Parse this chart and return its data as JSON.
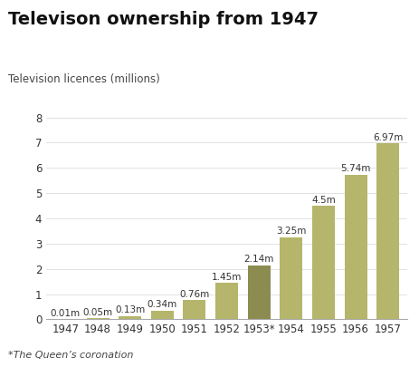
{
  "title": "Televison ownership from 1947",
  "ylabel": "Television licences (millions)",
  "footnote": "*The Queen’s coronation",
  "categories": [
    "1947",
    "1948",
    "1949",
    "1950",
    "1951",
    "1952",
    "1953*",
    "1954",
    "1955",
    "1956",
    "1957"
  ],
  "values": [
    0.01,
    0.05,
    0.13,
    0.34,
    0.76,
    1.45,
    2.14,
    3.25,
    4.5,
    5.74,
    6.97
  ],
  "labels": [
    "0.01m",
    "0.05m",
    "0.13m",
    "0.34m",
    "0.76m",
    "1.45m",
    "2.14m",
    "3.25m",
    "4.5m",
    "5.74m",
    "6.97m"
  ],
  "bar_colors": [
    "#b5b56b",
    "#b5b56b",
    "#b5b56b",
    "#b5b56b",
    "#b5b56b",
    "#b5b56b",
    "#8c8c50",
    "#b5b56b",
    "#b5b56b",
    "#b5b56b",
    "#b5b56b"
  ],
  "ylim": [
    0,
    8
  ],
  "yticks": [
    0,
    1,
    2,
    3,
    4,
    5,
    6,
    7,
    8
  ],
  "background_color": "#ffffff",
  "title_fontsize": 14,
  "label_fontsize": 7.5,
  "axis_fontsize": 8.5,
  "footnote_fontsize": 8.0,
  "ylabel_fontsize": 8.5
}
